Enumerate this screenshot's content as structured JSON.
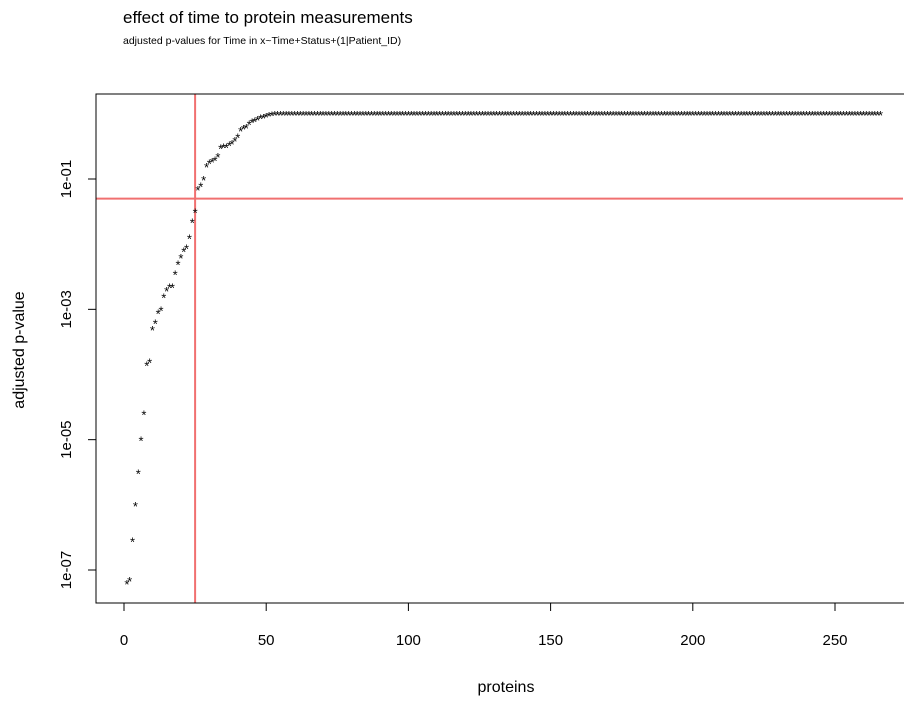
{
  "chart_data": {
    "type": "scatter",
    "title": "effect of time to protein measurements",
    "subtitle": "adjusted p-values for Time in x~Time+Status+(1|Patient_ID)",
    "xlabel": "proteins",
    "ylabel": "adjusted p-value",
    "xlim": [
      -10,
      275
    ],
    "ylim_log10": [
      -7.45,
      0.35
    ],
    "y_scale": "log10",
    "x_ticks": [
      0,
      50,
      100,
      150,
      200,
      250
    ],
    "x_tick_labels": [
      "0",
      "50",
      "100",
      "150",
      "200",
      "250"
    ],
    "y_ticks_log10": [
      -7,
      -5,
      -3,
      -1
    ],
    "y_tick_labels": [
      "1e-07",
      "1e-05",
      "1e-03",
      "1e-01"
    ],
    "marker": "*",
    "marker_color": "#000000",
    "reference_lines": {
      "vline_x": 25,
      "hline_y": 0.05,
      "color": "#f07070"
    },
    "x": [
      1,
      2,
      3,
      4,
      5,
      6,
      7,
      8,
      9,
      10,
      11,
      12,
      13,
      14,
      15,
      16,
      17,
      18,
      19,
      20,
      21,
      22,
      23,
      24,
      25,
      26,
      27,
      28,
      29,
      30,
      31,
      32,
      33,
      34,
      35,
      36,
      37,
      38,
      39,
      40,
      41,
      42,
      43,
      44,
      45,
      46,
      47,
      48,
      49,
      50,
      51,
      52
    ],
    "y_log10": [
      -7.2,
      -7.15,
      -6.55,
      -6.0,
      -5.5,
      -5.0,
      -4.6,
      -3.85,
      -3.8,
      -3.3,
      -3.2,
      -3.05,
      -3.0,
      -2.8,
      -2.7,
      -2.65,
      -2.65,
      -2.45,
      -2.3,
      -2.2,
      -2.1,
      -2.05,
      -1.9,
      -1.65,
      -1.5,
      -1.15,
      -1.1,
      -1.0,
      -0.8,
      -0.75,
      -0.72,
      -0.7,
      -0.65,
      -0.52,
      -0.5,
      -0.5,
      -0.47,
      -0.45,
      -0.4,
      -0.35,
      -0.25,
      -0.22,
      -0.2,
      -0.15,
      -0.12,
      -0.1,
      -0.08,
      -0.06,
      -0.05,
      -0.03,
      -0.02,
      -0.01
    ],
    "plateau": {
      "x_start": 53,
      "x_end": 266,
      "y_log10": 0
    }
  }
}
